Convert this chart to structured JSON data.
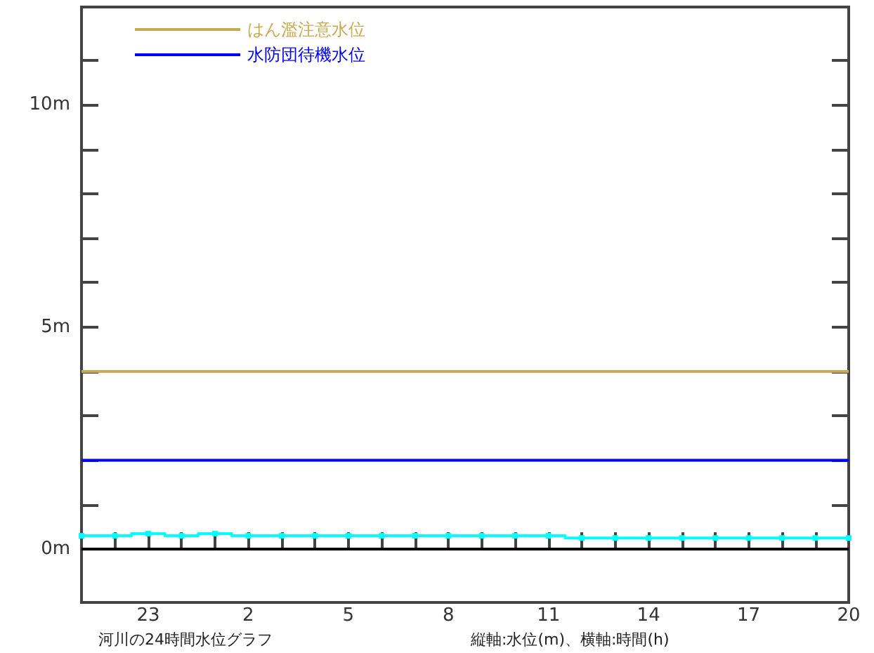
{
  "chart_data": {
    "type": "step",
    "annotations": [
      "河川の24時間水位グラフ",
      "縦軸:水位(m)、横軸:時間(h)"
    ],
    "categories": [
      null,
      null,
      "23",
      null,
      null,
      "2",
      null,
      null,
      "5",
      null,
      null,
      "8",
      null,
      null,
      "11",
      null,
      null,
      "14",
      null,
      null,
      "17",
      null,
      null,
      "20"
    ],
    "series": [
      {
        "name": "はん濫注意水位",
        "type": "line",
        "marker": "none",
        "color": "#c8aa50",
        "values": [
          4,
          4,
          4,
          4,
          4,
          4,
          4,
          4,
          4,
          4,
          4,
          4,
          4,
          4,
          4,
          4,
          4,
          4,
          4,
          4,
          4,
          4,
          4,
          4
        ]
      },
      {
        "name": "水防団待機水位",
        "type": "line",
        "marker": "none",
        "color": "#0000ff",
        "values": [
          2,
          2,
          2,
          2,
          2,
          2,
          2,
          2,
          2,
          2,
          2,
          2,
          2,
          2,
          2,
          2,
          2,
          2,
          2,
          2,
          2,
          2,
          2,
          2
        ]
      },
      {
        "color": "#00ffff",
        "values": [
          0.3,
          0.3,
          0.35,
          0.3,
          0.35,
          0.3,
          0.3,
          0.3,
          0.3,
          0.3,
          0.3,
          0.3,
          0.3,
          0.3,
          0.3,
          0.25,
          0.25,
          0.25,
          0.25,
          0.25,
          0.25,
          0.25,
          0.25,
          0.25
        ]
      }
    ],
    "marker": "square",
    "ylim": [
      -1.2,
      12.2
    ],
    "yticks": [
      {
        "value": 0,
        "label": "0m"
      },
      {
        "value": 1,
        "label": null
      },
      {
        "value": 2,
        "label": null
      },
      {
        "value": 3,
        "label": null
      },
      {
        "value": 4,
        "label": null
      },
      {
        "value": 5,
        "label": "5m"
      },
      {
        "value": 6,
        "label": null
      },
      {
        "value": 7,
        "label": null
      },
      {
        "value": 8,
        "label": null
      },
      {
        "value": 9,
        "label": null
      },
      {
        "value": 10,
        "label": "10m"
      },
      {
        "value": 11,
        "label": null
      }
    ],
    "ref_lines": [
      {
        "axis": "y",
        "value": 0,
        "color": "#000000"
      }
    ],
    "legend": "top left",
    "grid": false
  }
}
